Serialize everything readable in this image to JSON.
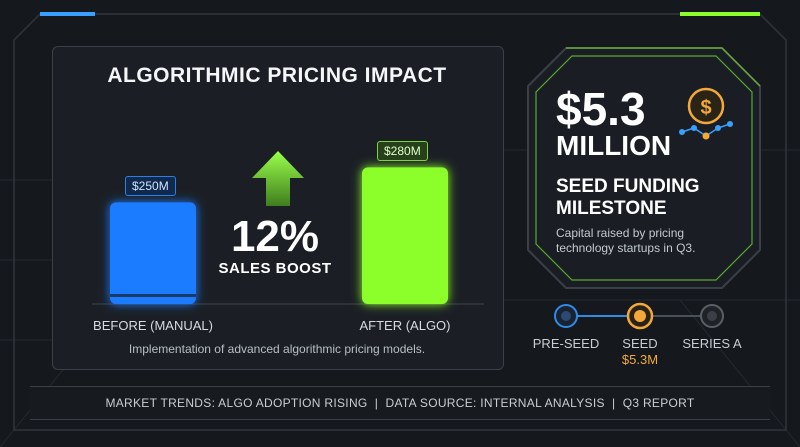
{
  "colors": {
    "background": "#15181d",
    "before_bar": "#1e7bff",
    "after_bar": "#8cff2a",
    "accent_gold": "#f3a93a",
    "accent_blue": "#3aa0ff"
  },
  "chart_data": {
    "type": "bar",
    "title": "ALGORITHMIC PRICING IMPACT",
    "categories": [
      "BEFORE (MANUAL)",
      "AFTER (ALGO)"
    ],
    "values": [
      250,
      280
    ],
    "value_labels": [
      "$250M",
      "$280M"
    ],
    "unit": "$M",
    "ylim": [
      0,
      300
    ],
    "grid": false,
    "annotation": {
      "value": "12%",
      "label": "SALES BOOST"
    },
    "footnote": "Implementation of advanced algorithmic pricing models."
  },
  "funding": {
    "amount": "$5.3",
    "unit": "MILLION",
    "title_line1": "SEED FUNDING",
    "title_line2": "MILESTONE",
    "description_line1": "Capital raised by pricing",
    "description_line2": "technology startups in Q3.",
    "icon": "dollar-coin-icon",
    "stages": [
      {
        "label": "PRE-SEED",
        "amount": ""
      },
      {
        "label": "SEED",
        "amount": "$5.3M"
      },
      {
        "label": "SERIES A",
        "amount": ""
      }
    ],
    "active_stage": 1
  },
  "footer": {
    "text": "MARKET TRENDS: ALGO ADOPTION RISING  |  DATA SOURCE: INTERNAL ANALYSIS  |  Q3 REPORT"
  }
}
